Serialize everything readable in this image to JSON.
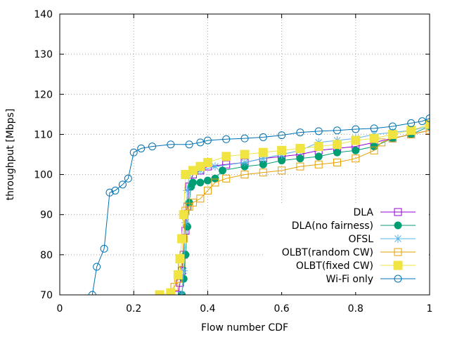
{
  "chart_data": {
    "type": "line",
    "title": "",
    "xlabel": "Flow number CDF",
    "ylabel": "throughput [Mbps]",
    "xlim": [
      0,
      1
    ],
    "ylim": [
      70,
      140
    ],
    "xticks": [
      0,
      0.2,
      0.4,
      0.6,
      0.8,
      1
    ],
    "xtick_labels": [
      "0",
      "0.2",
      "0.4",
      "0.6",
      "0.8",
      "1"
    ],
    "yticks": [
      70,
      80,
      90,
      100,
      110,
      120,
      130,
      140
    ],
    "ytick_labels": [
      "70",
      "80",
      "90",
      "100",
      "110",
      "120",
      "130",
      "140"
    ],
    "grid": true,
    "legend_position": "bottom-right",
    "series": [
      {
        "name": "DLA",
        "color": "#9400d3",
        "marker": "open-square",
        "points": [
          [
            0.32,
            70
          ],
          [
            0.325,
            73
          ],
          [
            0.33,
            76
          ],
          [
            0.335,
            80
          ],
          [
            0.34,
            86
          ],
          [
            0.345,
            92
          ],
          [
            0.35,
            97
          ],
          [
            0.36,
            100
          ],
          [
            0.38,
            101
          ],
          [
            0.4,
            102
          ],
          [
            0.45,
            102.5
          ],
          [
            0.5,
            103
          ],
          [
            0.55,
            104
          ],
          [
            0.6,
            104.5
          ],
          [
            0.65,
            105
          ],
          [
            0.7,
            106
          ],
          [
            0.75,
            106.5
          ],
          [
            0.8,
            107
          ],
          [
            0.85,
            108
          ],
          [
            0.9,
            109
          ],
          [
            0.95,
            110
          ],
          [
            1.0,
            111
          ]
        ]
      },
      {
        "name": "DLA(no fairness)",
        "color": "#009e73",
        "marker": "filled-circle",
        "points": [
          [
            0.33,
            70
          ],
          [
            0.335,
            74
          ],
          [
            0.34,
            80
          ],
          [
            0.345,
            87
          ],
          [
            0.35,
            93
          ],
          [
            0.355,
            97
          ],
          [
            0.36,
            98
          ],
          [
            0.38,
            98
          ],
          [
            0.4,
            98.5
          ],
          [
            0.42,
            99
          ],
          [
            0.44,
            101
          ],
          [
            0.5,
            102
          ],
          [
            0.55,
            102.5
          ],
          [
            0.6,
            103.5
          ],
          [
            0.65,
            104
          ],
          [
            0.7,
            104.5
          ],
          [
            0.75,
            105.5
          ],
          [
            0.8,
            106
          ],
          [
            0.85,
            107
          ],
          [
            0.9,
            109
          ],
          [
            0.95,
            110
          ],
          [
            1.0,
            112
          ]
        ]
      },
      {
        "name": "OFSL",
        "color": "#56b4e9",
        "marker": "asterisk",
        "points": [
          [
            0.33,
            70
          ],
          [
            0.335,
            76
          ],
          [
            0.34,
            88
          ],
          [
            0.345,
            96
          ],
          [
            0.35,
            100
          ],
          [
            0.38,
            101
          ],
          [
            0.42,
            102
          ],
          [
            0.5,
            103
          ],
          [
            0.55,
            104
          ],
          [
            0.6,
            105
          ],
          [
            0.65,
            106
          ],
          [
            0.7,
            108
          ],
          [
            0.75,
            108.5
          ],
          [
            0.8,
            109
          ],
          [
            0.85,
            110
          ],
          [
            0.9,
            110.5
          ],
          [
            0.95,
            111
          ],
          [
            1.0,
            112
          ]
        ]
      },
      {
        "name": "OLBT(random CW)",
        "color": "#e69f00",
        "marker": "open-square",
        "points": [
          [
            0.3,
            70
          ],
          [
            0.31,
            72
          ],
          [
            0.32,
            74
          ],
          [
            0.33,
            78
          ],
          [
            0.335,
            84
          ],
          [
            0.34,
            91
          ],
          [
            0.35,
            92
          ],
          [
            0.36,
            93
          ],
          [
            0.38,
            94
          ],
          [
            0.4,
            96
          ],
          [
            0.42,
            98
          ],
          [
            0.45,
            99
          ],
          [
            0.5,
            100
          ],
          [
            0.55,
            100.5
          ],
          [
            0.6,
            101
          ],
          [
            0.65,
            102
          ],
          [
            0.7,
            102.5
          ],
          [
            0.75,
            103
          ],
          [
            0.8,
            104
          ],
          [
            0.85,
            106
          ],
          [
            0.87,
            108
          ],
          [
            0.9,
            109
          ],
          [
            0.95,
            110
          ],
          [
            1.0,
            111
          ]
        ]
      },
      {
        "name": "OLBT(fixed CW)",
        "color": "#f0e442",
        "marker": "filled-square",
        "points": [
          [
            0.27,
            70
          ],
          [
            0.3,
            70.5
          ],
          [
            0.32,
            75
          ],
          [
            0.325,
            79
          ],
          [
            0.33,
            84
          ],
          [
            0.335,
            90
          ],
          [
            0.34,
            100
          ],
          [
            0.36,
            101
          ],
          [
            0.38,
            102
          ],
          [
            0.4,
            103
          ],
          [
            0.45,
            104.5
          ],
          [
            0.5,
            105
          ],
          [
            0.55,
            105.5
          ],
          [
            0.6,
            106
          ],
          [
            0.65,
            106.5
          ],
          [
            0.7,
            107
          ],
          [
            0.75,
            107.5
          ],
          [
            0.8,
            108.5
          ],
          [
            0.85,
            109
          ],
          [
            0.9,
            110
          ],
          [
            0.95,
            111
          ],
          [
            1.0,
            112.5
          ]
        ]
      },
      {
        "name": "Wi-Fi only",
        "color": "#0072b2",
        "marker": "open-circle",
        "points": [
          [
            0.088,
            70
          ],
          [
            0.1,
            77
          ],
          [
            0.12,
            81.5
          ],
          [
            0.135,
            95.5
          ],
          [
            0.15,
            96
          ],
          [
            0.17,
            97.5
          ],
          [
            0.185,
            99
          ],
          [
            0.2,
            105.5
          ],
          [
            0.22,
            106.5
          ],
          [
            0.25,
            107
          ],
          [
            0.3,
            107.5
          ],
          [
            0.35,
            107.5
          ],
          [
            0.38,
            108
          ],
          [
            0.4,
            108.5
          ],
          [
            0.45,
            108.8
          ],
          [
            0.5,
            109
          ],
          [
            0.55,
            109.3
          ],
          [
            0.6,
            109.8
          ],
          [
            0.65,
            110.5
          ],
          [
            0.7,
            110.8
          ],
          [
            0.75,
            111
          ],
          [
            0.8,
            111.3
          ],
          [
            0.85,
            111.5
          ],
          [
            0.9,
            112
          ],
          [
            0.95,
            112.8
          ],
          [
            0.98,
            113.3
          ],
          [
            1.0,
            114
          ]
        ]
      }
    ]
  }
}
